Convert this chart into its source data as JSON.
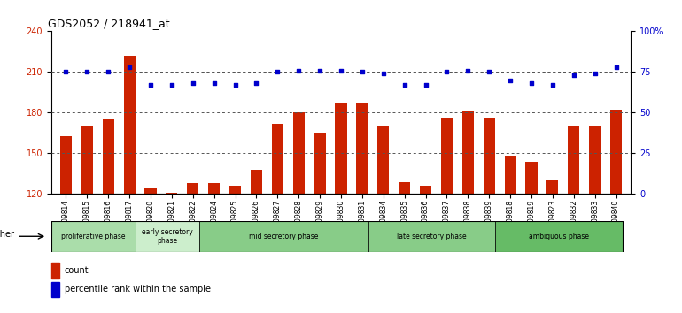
{
  "title": "GDS2052 / 218941_at",
  "samples": [
    "GSM109814",
    "GSM109815",
    "GSM109816",
    "GSM109817",
    "GSM109820",
    "GSM109821",
    "GSM109822",
    "GSM109824",
    "GSM109825",
    "GSM109826",
    "GSM109827",
    "GSM109828",
    "GSM109829",
    "GSM109830",
    "GSM109831",
    "GSM109834",
    "GSM109835",
    "GSM109836",
    "GSM109837",
    "GSM109838",
    "GSM109839",
    "GSM109818",
    "GSM109819",
    "GSM109823",
    "GSM109832",
    "GSM109833",
    "GSM109840"
  ],
  "bar_values": [
    163,
    170,
    175,
    222,
    124,
    121,
    128,
    128,
    126,
    138,
    172,
    180,
    165,
    187,
    187,
    170,
    129,
    126,
    176,
    181,
    176,
    148,
    144,
    130,
    170,
    170,
    182
  ],
  "blue_values": [
    75,
    75,
    75,
    78,
    67,
    67,
    68,
    68,
    67,
    68,
    75,
    76,
    76,
    76,
    75,
    74,
    67,
    67,
    75,
    76,
    75,
    70,
    68,
    67,
    73,
    74,
    78
  ],
  "ylim_left": [
    120,
    240
  ],
  "ylim_right": [
    0,
    100
  ],
  "yticks_left": [
    120,
    150,
    180,
    210,
    240
  ],
  "yticks_right": [
    0,
    25,
    50,
    75,
    100
  ],
  "ytick_labels_right": [
    "0",
    "25",
    "50",
    "75",
    "100%"
  ],
  "bar_color": "#cc2200",
  "dot_color": "#0000cc",
  "bg_color": "#ffffff",
  "phases": [
    {
      "label": "proliferative phase",
      "start": 0,
      "end": 4,
      "color": "#aaddaa"
    },
    {
      "label": "early secretory\nphase",
      "start": 4,
      "end": 7,
      "color": "#cceecc"
    },
    {
      "label": "mid secretory phase",
      "start": 7,
      "end": 15,
      "color": "#88cc88"
    },
    {
      "label": "late secretory phase",
      "start": 15,
      "end": 21,
      "color": "#88cc88"
    },
    {
      "label": "ambiguous phase",
      "start": 21,
      "end": 27,
      "color": "#66bb66"
    }
  ],
  "dotted_line_color": "#555555",
  "grid_values": [
    150,
    180,
    210
  ],
  "other_label": "other",
  "legend_count_label": "count",
  "legend_pct_label": "percentile rank within the sample"
}
